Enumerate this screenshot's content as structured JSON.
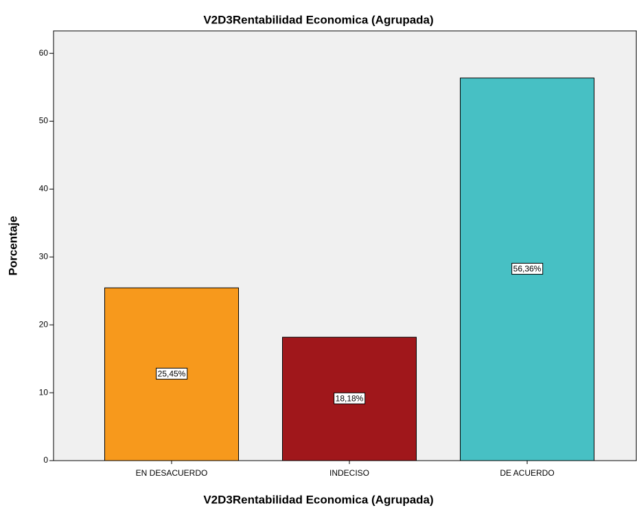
{
  "chart_data": {
    "type": "bar",
    "title": "V2D3Rentabilidad Economica (Agrupada)",
    "x_label": "V2D3Rentabilidad Economica (Agrupada)",
    "y_label": "Porcentaje",
    "categories": [
      "EN DESACUERDO",
      "INDECISO",
      "DE ACUERDO"
    ],
    "values": [
      25.45,
      18.18,
      56.36
    ],
    "value_labels": [
      "25,45%",
      "18,18%",
      "56,36%"
    ],
    "colors": [
      "#f7991c",
      "#a0171b",
      "#47c0c4"
    ],
    "ylim": [
      0,
      63.3
    ],
    "yticks": [
      0,
      10,
      20,
      30,
      40,
      50,
      60
    ],
    "grid": false
  }
}
